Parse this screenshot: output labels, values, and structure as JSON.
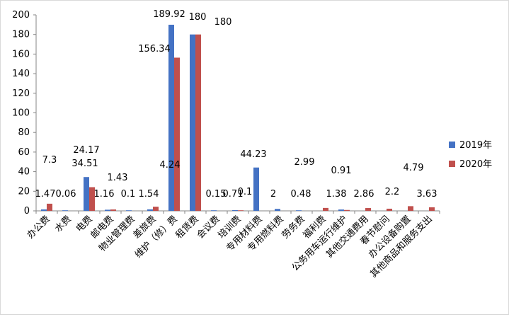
{
  "chart_data": {
    "type": "bar",
    "categories": [
      "办公费",
      "水费",
      "电费",
      "邮电费",
      "物业管理费",
      "差旅费",
      "维护（修）费",
      "租赁费",
      "会议费",
      "培训费",
      "专用材料费",
      "专用燃料费",
      "劳务费",
      "福利费",
      "公务用车运行维护",
      "其他交通费用",
      "春节慰问",
      "办公设备购置",
      "其他商品和服务支出"
    ],
    "series": [
      {
        "name": "2019年",
        "color": "#4472c4",
        "values": [
          1.47,
          0.06,
          34.51,
          1.16,
          0.1,
          1.54,
          189.92,
          180,
          0.15,
          0.71,
          44.23,
          2,
          0.48,
          0,
          1.38,
          0,
          0,
          0,
          0
        ]
      },
      {
        "name": "2020年",
        "color": "#c0504d",
        "values": [
          7.3,
          0,
          24.17,
          1.43,
          0,
          4.24,
          156.34,
          180,
          0,
          0.1,
          0,
          0,
          0,
          2.99,
          0.91,
          2.86,
          2.2,
          4.79,
          3.63
        ]
      }
    ],
    "ylim": [
      0,
      200
    ],
    "yticks": [
      "0",
      "20",
      "40",
      "60",
      "80",
      "100",
      "120",
      "140",
      "160",
      "180",
      "200"
    ],
    "data_labels": [
      "7.3",
      "1.47",
      "0.06",
      "24.17",
      "34.51",
      "1.16",
      "1.43",
      "0.1",
      "1.54",
      "4.24",
      "189.92",
      "156.34",
      "180",
      "180",
      "0.15",
      "0.71",
      "0.1",
      "44.23",
      "2",
      "0.48",
      "2.99",
      "1.38",
      "0.91",
      "2.86",
      "2.2",
      "4.79",
      "3.63"
    ],
    "grid": false,
    "legend": "right"
  }
}
